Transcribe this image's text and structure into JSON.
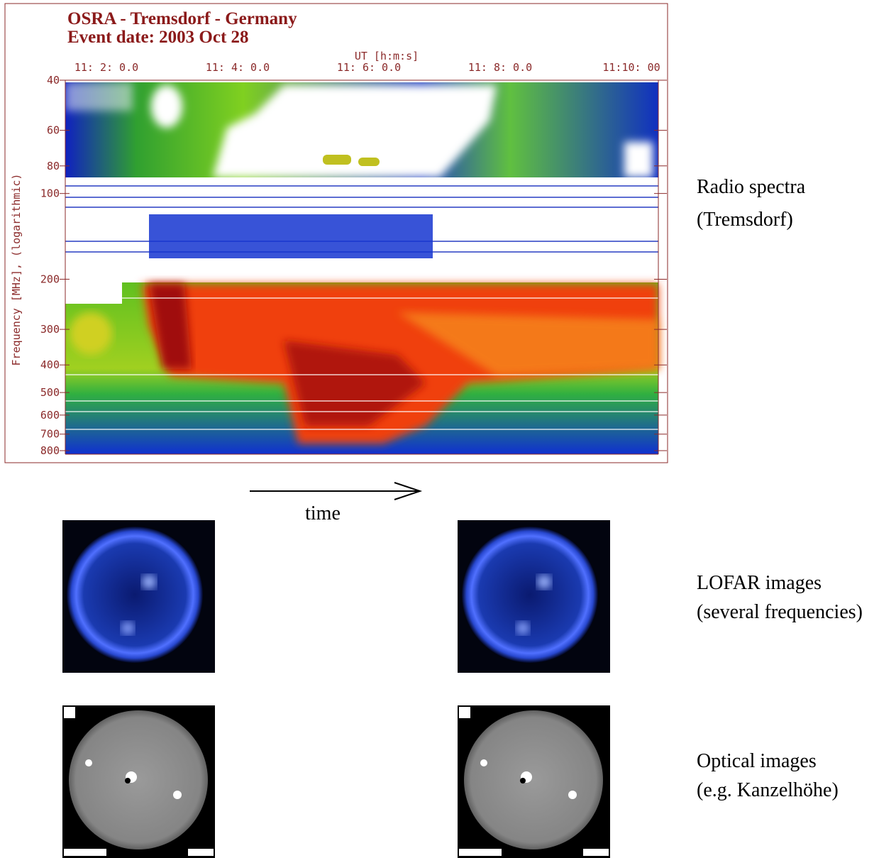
{
  "header": {
    "title": "OSRA - Tremsdorf - Germany",
    "event_date": "Event date: 2003 Oct 28"
  },
  "spectrogram": {
    "x_axis_label": "UT [h:m:s]",
    "xticks": [
      "11: 2: 0.0",
      "11: 4: 0.0",
      "11: 6: 0.0",
      "11: 8: 0.0",
      "11:10: 00"
    ],
    "y_axis_label": "Frequency [MHz], (logarithmic)",
    "ylim": [
      40,
      800
    ],
    "log_scale": true,
    "yticks": [
      40,
      60,
      80,
      100,
      200,
      300,
      400,
      500,
      600,
      700,
      800
    ]
  },
  "arrow_label": "time",
  "rows": [
    {
      "label": "Radio spectra",
      "source": "(Tremsdorf)"
    },
    {
      "label": "LOFAR images",
      "source": "(several frequencies)"
    },
    {
      "label": "Optical images",
      "source": "(e.g. Kanzelhöhe)"
    }
  ]
}
